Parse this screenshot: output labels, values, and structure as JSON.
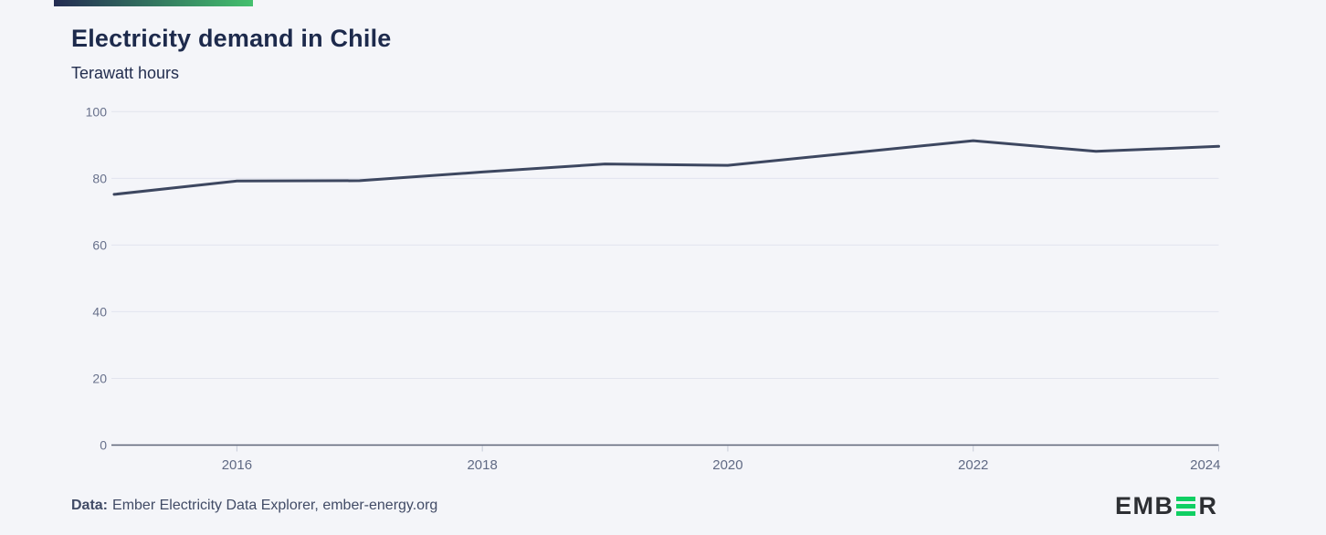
{
  "header": {
    "title": "Electricity demand in Chile",
    "subtitle": "Terawatt hours",
    "accent": {
      "from": "#232b52",
      "to": "#44c06e"
    }
  },
  "chart_data": {
    "type": "line",
    "title": "Electricity demand in Chile",
    "ylabel": "Terawatt hours",
    "x": [
      2015,
      2016,
      2017,
      2018,
      2019,
      2020,
      2021,
      2022,
      2023,
      2024
    ],
    "values": [
      75.2,
      79.2,
      79.3,
      81.9,
      84.3,
      83.9,
      87.6,
      91.3,
      88.1,
      89.6
    ],
    "ylim": [
      0,
      100
    ],
    "yticks": [
      0,
      20,
      40,
      60,
      80,
      100
    ],
    "xticks": [
      2016,
      2018,
      2020,
      2022,
      2024
    ],
    "grid": true,
    "legend": false,
    "line_color": "#3d4760",
    "gridline_color": "#e2e4ee",
    "axis_color": "#5c6478",
    "tick_label_color": "#68718c"
  },
  "footer": {
    "source_label": "Data:",
    "source_text": "Ember Electricity Data Explorer, ember-energy.org",
    "logo": {
      "prefix": "EMB",
      "suffix": "R",
      "green": "#10cf63"
    }
  }
}
